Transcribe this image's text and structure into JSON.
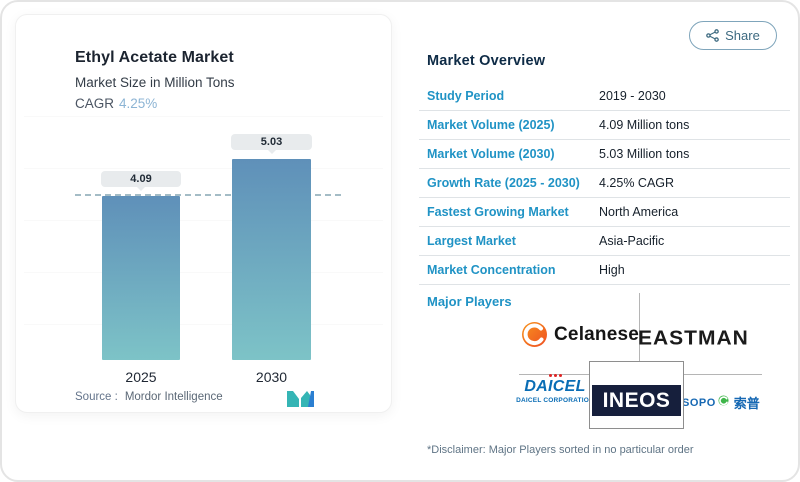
{
  "share_button": {
    "label": "Share"
  },
  "chart_card": {
    "title": "Ethyl Acetate Market",
    "subtitle": "Market Size in Million Tons",
    "cagr_label": "CAGR",
    "cagr_value": "4.25%",
    "source_label": "Source :",
    "source_value": "Mordor Intelligence"
  },
  "chart_data": {
    "type": "bar",
    "title": "Ethyl Acetate Market",
    "ylabel": "Market Size in Million Tons",
    "categories": [
      "2025",
      "2030"
    ],
    "values": [
      4.09,
      5.03
    ],
    "value_labels": [
      "4.09",
      "5.03"
    ],
    "reference_line_value": 4.09,
    "bar_gradient_top": "#5f90b9",
    "bar_gradient_bottom": "#7dc3c7",
    "grid": false,
    "legend": "none"
  },
  "overview": {
    "title": "Market Overview",
    "rows": [
      {
        "label": "Study Period",
        "value": "2019 - 2030"
      },
      {
        "label": "Market Volume (2025)",
        "value": "4.09 Million tons"
      },
      {
        "label": "Market Volume (2030)",
        "value": "5.03 Million tons"
      },
      {
        "label": "Growth Rate (2025 - 2030)",
        "value": "4.25% CAGR"
      },
      {
        "label": "Fastest Growing Market",
        "value": "North America"
      },
      {
        "label": "Largest Market",
        "value": "Asia-Pacific"
      },
      {
        "label": "Market Concentration",
        "value": "High"
      }
    ],
    "major_players_label": "Major Players",
    "players": {
      "celanese": {
        "name": "Celanese"
      },
      "eastman": {
        "name": "EASTMAN"
      },
      "daicel": {
        "name": "DAICEL",
        "subtext": "DAICEL CORPORATION"
      },
      "ineos": {
        "name": "INEOS"
      },
      "sopo": {
        "name": "SOPO",
        "cn": "索普"
      }
    },
    "disclaimer": "*Disclaimer: Major Players sorted in no particular order"
  },
  "colors": {
    "accent_blue": "#2093c5",
    "heading_navy": "#0e2b46",
    "cagr_value_blue": "#8cb4d4",
    "dashed_line": "#a4bcc6",
    "value_pill_bg": "#e8ebed",
    "share_border": "#7fa5bb",
    "share_text": "#3d6a80",
    "celanese_orange": "#f26a21",
    "daicel_blue": "#0a6db5",
    "daicel_red": "#e02424",
    "ineos_navy": "#161f3c",
    "sopo_blue": "#1668b3",
    "sopo_green": "#3eb649",
    "mordor_teal": "#35b5b5",
    "mordor_blue": "#2b7fd1"
  }
}
